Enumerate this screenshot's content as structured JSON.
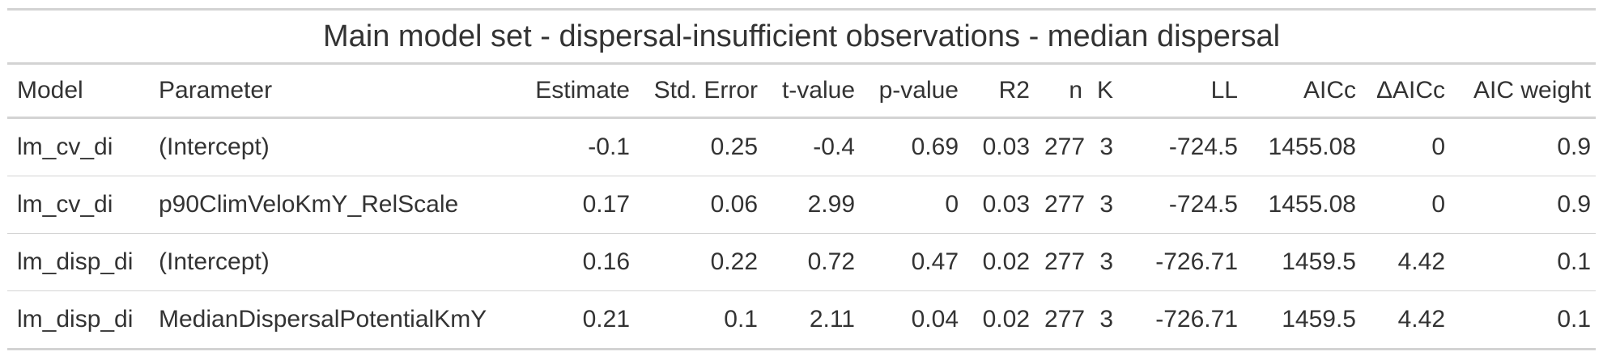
{
  "table": {
    "title": "Main model set - dispersal-insufficient observations - median dispersal",
    "columns": [
      "Model",
      "Parameter",
      "Estimate",
      "Std. Error",
      "t-value",
      "p-value",
      "R2",
      "n",
      "K",
      "LL",
      "AICc",
      "ΔAICc",
      "AIC weight"
    ],
    "rows": [
      [
        "lm_cv_di",
        "(Intercept)",
        "-0.1",
        "0.25",
        "-0.4",
        "0.69",
        "0.03",
        "277",
        "3",
        "-724.5",
        "1455.08",
        "0",
        "0.9"
      ],
      [
        "lm_cv_di",
        "p90ClimVeloKmY_RelScale",
        "0.17",
        "0.06",
        "2.99",
        "0",
        "0.03",
        "277",
        "3",
        "-724.5",
        "1455.08",
        "0",
        "0.9"
      ],
      [
        "lm_disp_di",
        "(Intercept)",
        "0.16",
        "0.22",
        "0.72",
        "0.47",
        "0.02",
        "277",
        "3",
        "-726.71",
        "1459.5",
        "4.42",
        "0.1"
      ],
      [
        "lm_disp_di",
        "MedianDispersalPotentialKmY",
        "0.21",
        "0.1",
        "2.11",
        "0.04",
        "0.02",
        "277",
        "3",
        "-726.71",
        "1459.5",
        "4.42",
        "0.1"
      ]
    ]
  }
}
